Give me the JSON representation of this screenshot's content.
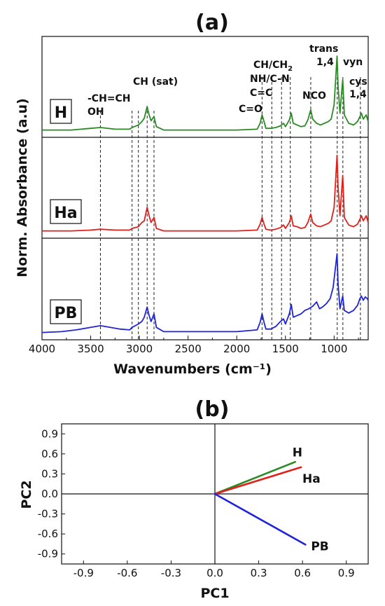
{
  "chart_data": [
    {
      "panel_label": "(a)",
      "type": "line",
      "xlabel": "Wavenumbers (cm⁻¹)",
      "ylabel": "Norm. Absorbance (a.u)",
      "xlim": [
        4000,
        650
      ],
      "x_reversed": true,
      "x_ticks": [
        4000,
        3500,
        3000,
        2500,
        2000,
        1500,
        1000
      ],
      "grid": false,
      "colors": {
        "H": "#2a8a23",
        "Ha": "#e0201b",
        "PB": "#1f24d6"
      },
      "series": [
        {
          "name": "H",
          "color": "#2a8a23",
          "points": [
            [
              4000,
              0.02
            ],
            [
              3700,
              0.02
            ],
            [
              3500,
              0.04
            ],
            [
              3400,
              0.05
            ],
            [
              3250,
              0.03
            ],
            [
              3100,
              0.03
            ],
            [
              3075,
              0.05
            ],
            [
              3010,
              0.08
            ],
            [
              2975,
              0.12
            ],
            [
              2950,
              0.16
            ],
            [
              2920,
              0.3
            ],
            [
              2900,
              0.2
            ],
            [
              2880,
              0.13
            ],
            [
              2850,
              0.18
            ],
            [
              2825,
              0.06
            ],
            [
              2750,
              0.02
            ],
            [
              2400,
              0.02
            ],
            [
              2000,
              0.02
            ],
            [
              1790,
              0.03
            ],
            [
              1760,
              0.1
            ],
            [
              1740,
              0.2
            ],
            [
              1720,
              0.12
            ],
            [
              1700,
              0.04
            ],
            [
              1650,
              0.04
            ],
            [
              1600,
              0.05
            ],
            [
              1550,
              0.07
            ],
            [
              1520,
              0.1
            ],
            [
              1500,
              0.06
            ],
            [
              1460,
              0.14
            ],
            [
              1440,
              0.22
            ],
            [
              1420,
              0.1
            ],
            [
              1380,
              0.08
            ],
            [
              1340,
              0.06
            ],
            [
              1300,
              0.07
            ],
            [
              1270,
              0.14
            ],
            [
              1240,
              0.26
            ],
            [
              1220,
              0.15
            ],
            [
              1180,
              0.1
            ],
            [
              1140,
              0.08
            ],
            [
              1100,
              0.1
            ],
            [
              1060,
              0.12
            ],
            [
              1030,
              0.15
            ],
            [
              1000,
              0.32
            ],
            [
              970,
              0.9
            ],
            [
              960,
              0.55
            ],
            [
              940,
              0.22
            ],
            [
              912,
              0.62
            ],
            [
              895,
              0.2
            ],
            [
              850,
              0.1
            ],
            [
              800,
              0.08
            ],
            [
              760,
              0.12
            ],
            [
              735,
              0.18
            ],
            [
              720,
              0.22
            ],
            [
              700,
              0.15
            ],
            [
              670,
              0.2
            ],
            [
              650,
              0.12
            ]
          ]
        },
        {
          "name": "Ha",
          "color": "#e0201b",
          "points": [
            [
              4000,
              0.02
            ],
            [
              3700,
              0.02
            ],
            [
              3500,
              0.03
            ],
            [
              3400,
              0.04
            ],
            [
              3250,
              0.03
            ],
            [
              3100,
              0.03
            ],
            [
              3075,
              0.05
            ],
            [
              3010,
              0.07
            ],
            [
              2975,
              0.12
            ],
            [
              2950,
              0.14
            ],
            [
              2920,
              0.3
            ],
            [
              2900,
              0.2
            ],
            [
              2880,
              0.12
            ],
            [
              2850,
              0.18
            ],
            [
              2825,
              0.05
            ],
            [
              2750,
              0.02
            ],
            [
              2400,
              0.02
            ],
            [
              2000,
              0.02
            ],
            [
              1790,
              0.03
            ],
            [
              1760,
              0.1
            ],
            [
              1740,
              0.18
            ],
            [
              1720,
              0.1
            ],
            [
              1700,
              0.04
            ],
            [
              1650,
              0.03
            ],
            [
              1600,
              0.04
            ],
            [
              1550,
              0.06
            ],
            [
              1520,
              0.09
            ],
            [
              1500,
              0.05
            ],
            [
              1460,
              0.12
            ],
            [
              1440,
              0.2
            ],
            [
              1420,
              0.08
            ],
            [
              1380,
              0.07
            ],
            [
              1340,
              0.05
            ],
            [
              1300,
              0.06
            ],
            [
              1270,
              0.12
            ],
            [
              1240,
              0.22
            ],
            [
              1220,
              0.12
            ],
            [
              1180,
              0.08
            ],
            [
              1140,
              0.07
            ],
            [
              1100,
              0.09
            ],
            [
              1060,
              0.11
            ],
            [
              1030,
              0.14
            ],
            [
              1000,
              0.3
            ],
            [
              970,
              0.92
            ],
            [
              960,
              0.55
            ],
            [
              940,
              0.2
            ],
            [
              912,
              0.68
            ],
            [
              895,
              0.18
            ],
            [
              850,
              0.09
            ],
            [
              800,
              0.07
            ],
            [
              760,
              0.1
            ],
            [
              735,
              0.16
            ],
            [
              720,
              0.2
            ],
            [
              700,
              0.14
            ],
            [
              670,
              0.2
            ],
            [
              650,
              0.12
            ]
          ]
        },
        {
          "name": "PB",
          "color": "#1f24d6",
          "points": [
            [
              4000,
              0.02
            ],
            [
              3800,
              0.03
            ],
            [
              3650,
              0.05
            ],
            [
              3500,
              0.08
            ],
            [
              3400,
              0.1
            ],
            [
              3300,
              0.08
            ],
            [
              3200,
              0.06
            ],
            [
              3100,
              0.05
            ],
            [
              3075,
              0.08
            ],
            [
              3010,
              0.12
            ],
            [
              2975,
              0.15
            ],
            [
              2950,
              0.2
            ],
            [
              2920,
              0.32
            ],
            [
              2900,
              0.22
            ],
            [
              2880,
              0.15
            ],
            [
              2850,
              0.24
            ],
            [
              2825,
              0.08
            ],
            [
              2750,
              0.03
            ],
            [
              2400,
              0.03
            ],
            [
              2000,
              0.03
            ],
            [
              1790,
              0.05
            ],
            [
              1760,
              0.14
            ],
            [
              1740,
              0.24
            ],
            [
              1720,
              0.14
            ],
            [
              1700,
              0.06
            ],
            [
              1650,
              0.06
            ],
            [
              1600,
              0.09
            ],
            [
              1560,
              0.14
            ],
            [
              1520,
              0.18
            ],
            [
              1500,
              0.12
            ],
            [
              1460,
              0.24
            ],
            [
              1440,
              0.35
            ],
            [
              1420,
              0.2
            ],
            [
              1380,
              0.22
            ],
            [
              1340,
              0.24
            ],
            [
              1300,
              0.28
            ],
            [
              1260,
              0.3
            ],
            [
              1220,
              0.33
            ],
            [
              1180,
              0.38
            ],
            [
              1150,
              0.3
            ],
            [
              1120,
              0.32
            ],
            [
              1080,
              0.36
            ],
            [
              1040,
              0.42
            ],
            [
              1010,
              0.55
            ],
            [
              970,
              0.95
            ],
            [
              960,
              0.6
            ],
            [
              940,
              0.3
            ],
            [
              912,
              0.45
            ],
            [
              895,
              0.28
            ],
            [
              850,
              0.25
            ],
            [
              800,
              0.28
            ],
            [
              760,
              0.34
            ],
            [
              735,
              0.42
            ],
            [
              720,
              0.45
            ],
            [
              700,
              0.4
            ],
            [
              680,
              0.44
            ],
            [
              660,
              0.42
            ],
            [
              650,
              0.4
            ]
          ]
        }
      ],
      "box_labels": [
        "H",
        "Ha",
        "PB"
      ],
      "peak_labels": [
        {
          "text": "-CH=CH",
          "x": 3400
        },
        {
          "text": "OH",
          "x": 3400
        },
        {
          "text": "CH (sat)",
          "x": 2920
        },
        {
          "text": "C=O",
          "x": 1740
        },
        {
          "text": "CH/CH",
          "sub": "2",
          "x": 1640
        },
        {
          "text": "NH/C-N",
          "x": 1640
        },
        {
          "text": "C=C",
          "x": 1640
        },
        {
          "text": "NCO",
          "x": 1240
        },
        {
          "text": "trans",
          "x": 970
        },
        {
          "text": "1,4",
          "x": 970
        },
        {
          "text": "vyn",
          "x": 912
        },
        {
          "text": "cys",
          "x": 730
        },
        {
          "text": "1,4",
          "x": 730
        }
      ],
      "dashed_lines": [
        3400,
        3075,
        3010,
        2920,
        2850,
        1740,
        1640,
        1540,
        1450,
        1240,
        968,
        910,
        730
      ]
    },
    {
      "panel_label": "(b)",
      "type": "line",
      "xlabel": "PC1",
      "ylabel": "PC2",
      "xlim": [
        -1.05,
        1.05
      ],
      "ylim": [
        -1.05,
        1.05
      ],
      "ticks": [
        "-0.9",
        "-0.6",
        "-0.3",
        "0.0",
        "0.3",
        "0.6",
        "0.9"
      ],
      "grid": false,
      "series": [
        {
          "name": "H",
          "color": "#2a8a23",
          "values": [
            [
              0,
              0
            ],
            [
              0.55,
              0.48
            ]
          ]
        },
        {
          "name": "Ha",
          "color": "#e0201b",
          "values": [
            [
              0,
              0
            ],
            [
              0.59,
              0.4
            ]
          ]
        },
        {
          "name": "PB",
          "color": "#1f24d6",
          "values": [
            [
              0,
              0
            ],
            [
              0.62,
              -0.76
            ]
          ]
        }
      ]
    }
  ]
}
